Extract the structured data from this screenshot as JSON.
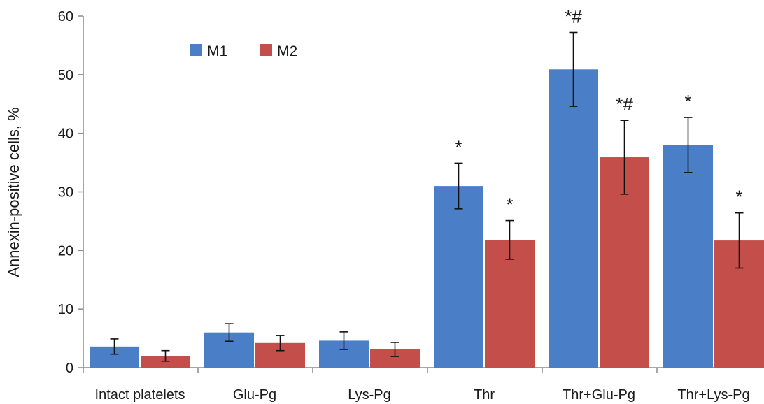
{
  "chart_data": {
    "type": "bar",
    "ylabel": "Annexin-positive cells, %",
    "ylim": [
      0,
      60
    ],
    "yticks": [
      0,
      10,
      20,
      30,
      40,
      50,
      60
    ],
    "categories": [
      "Intact platelets",
      "Glu-Pg",
      "Lys-Pg",
      "Thr",
      "Thr+Glu-Pg",
      "Thr+Lys-Pg"
    ],
    "series": [
      {
        "name": "M1",
        "color": "#4a7ec7",
        "values": [
          3.6,
          6.0,
          4.6,
          31.0,
          50.9,
          38.0
        ],
        "errors": [
          1.3,
          1.5,
          1.5,
          3.9,
          6.3,
          4.7
        ],
        "annotations": [
          "",
          "",
          "",
          "*",
          "*#",
          "*"
        ]
      },
      {
        "name": "M2",
        "color": "#c44e4a",
        "values": [
          2.0,
          4.2,
          3.1,
          21.8,
          35.9,
          21.7
        ],
        "errors": [
          0.9,
          1.3,
          1.2,
          3.3,
          6.3,
          4.7
        ],
        "annotations": [
          "",
          "",
          "",
          "*",
          "*#",
          "*"
        ]
      }
    ],
    "legend": "top-left",
    "grid": false
  }
}
